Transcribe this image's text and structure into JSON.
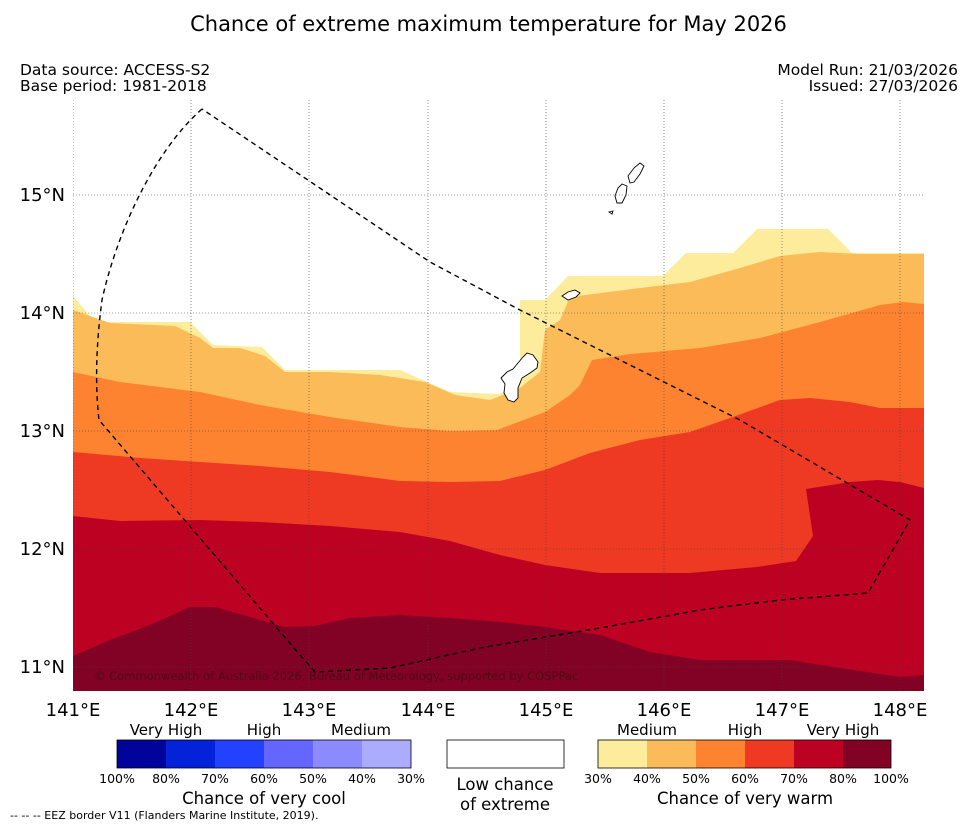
{
  "title": "Chance of extreme maximum temperature for May 2026",
  "header": {
    "data_source": "Data source: ACCESS-S2",
    "base_period": "Base period: 1981-2018",
    "model_run": "Model Run: 21/03/2026",
    "issued": "Issued: 27/03/2026"
  },
  "map": {
    "lat_labels": [
      "15°N",
      "14°N",
      "13°N",
      "12°N",
      "11°N"
    ],
    "lon_labels": [
      "141°E",
      "142°E",
      "143°E",
      "144°E",
      "145°E",
      "146°E",
      "147°E",
      "148°E"
    ],
    "copyright": "© Commonwealth of Australia 2026, Bureau of Meteorology, supported by COSPPac",
    "colors": {
      "warm_30_40": "#fdec9b",
      "warm_40_50": "#fcbb59",
      "warm_50_60": "#fd8331",
      "warm_60_70": "#ee3a22",
      "warm_70_80": "#bd0123",
      "warm_80_100": "#810225"
    }
  },
  "legend": {
    "cool": {
      "categories": [
        "Very High",
        "High",
        "Medium"
      ],
      "ticks": [
        "100%",
        "80%",
        "70%",
        "60%",
        "50%",
        "40%",
        "30%"
      ],
      "colors": [
        "#01039a",
        "#0422d8",
        "#2242ff",
        "#6565ff",
        "#8b8bff",
        "#ababff"
      ],
      "caption": "Chance of very cool"
    },
    "neutral": {
      "line1": "Low chance",
      "line2": "of extreme"
    },
    "warm": {
      "categories": [
        "Medium",
        "High",
        "Very High"
      ],
      "ticks": [
        "30%",
        "40%",
        "50%",
        "60%",
        "70%",
        "80%",
        "100%"
      ],
      "colors": [
        "#fdec9b",
        "#fcbb59",
        "#fd8331",
        "#ee3a22",
        "#bd0123",
        "#810225"
      ],
      "caption": "Chance of very warm"
    }
  },
  "footnote": "--  --  -- EEZ border V11 (Flanders Marine Institute, 2019)."
}
